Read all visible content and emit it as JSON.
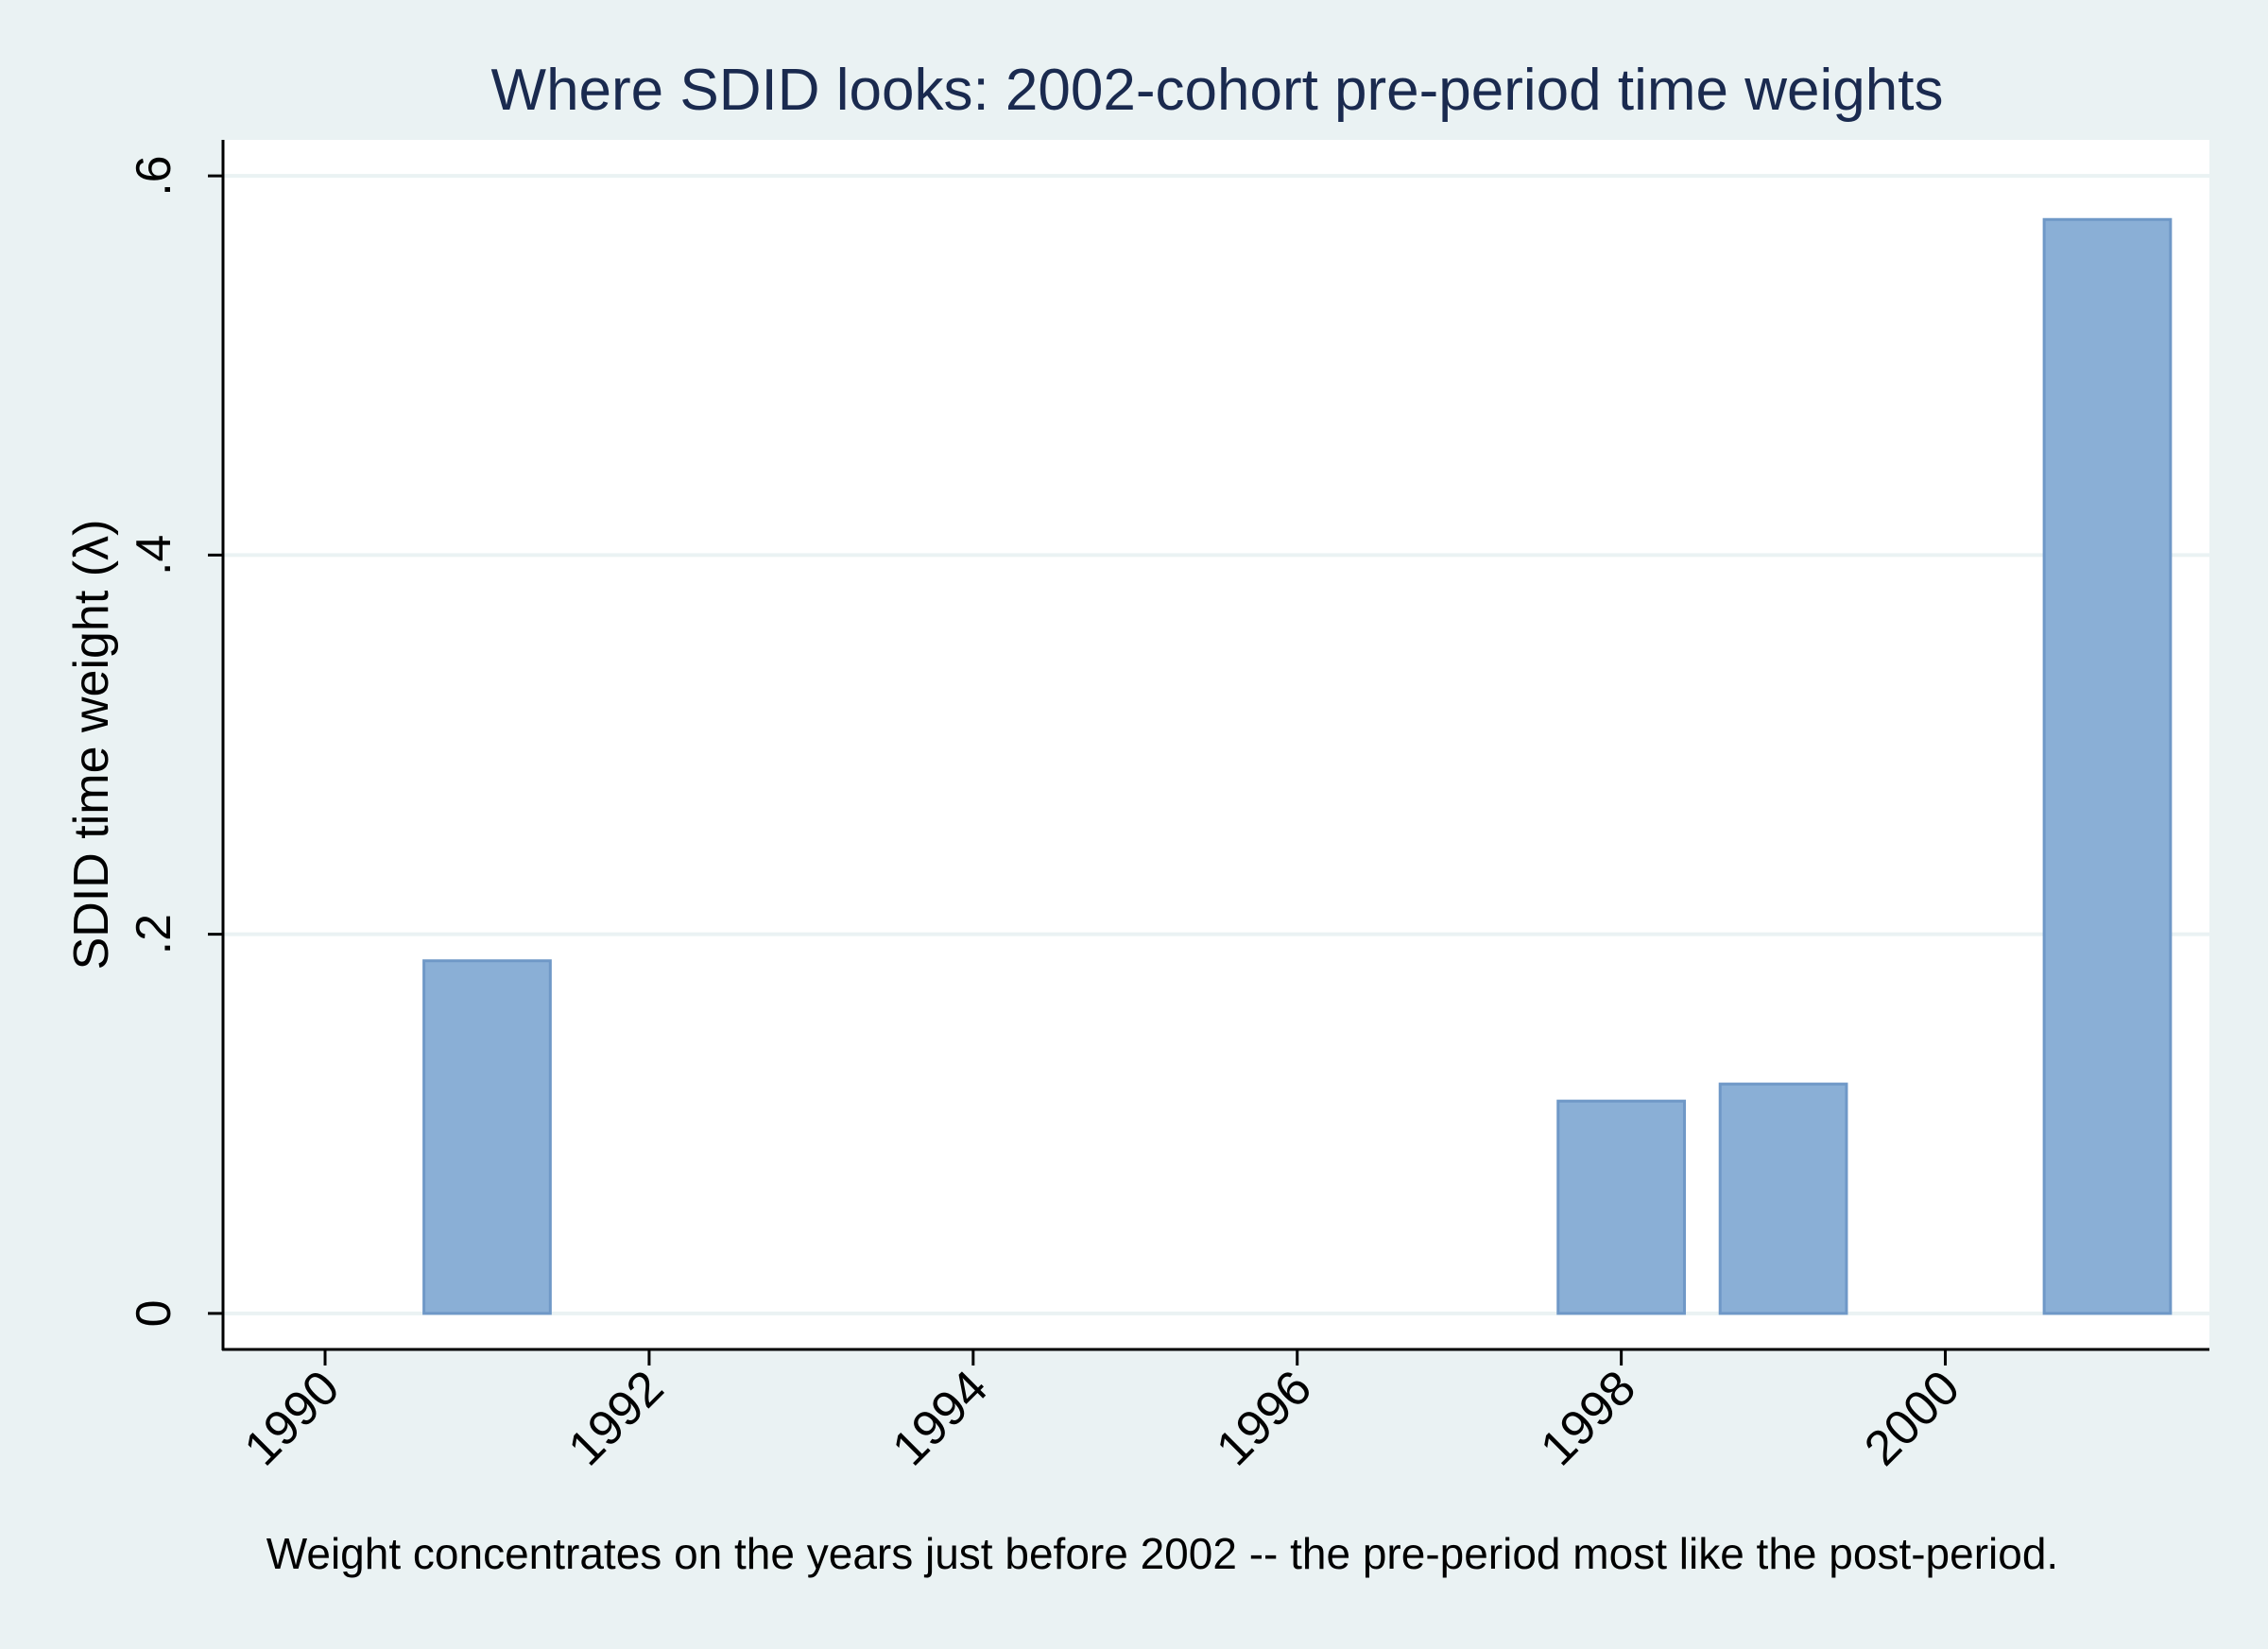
{
  "chart_data": {
    "type": "bar",
    "title": "Where SDID looks: 2002-cohort pre-period time weights",
    "ylabel": "SDID time weight (λ)",
    "xlabel": "",
    "caption": "Weight concentrates on the years just before 2002 -- the pre-period most like the post-period.",
    "x": [
      1990,
      1991,
      1992,
      1993,
      1994,
      1995,
      1996,
      1997,
      1998,
      1999,
      2000,
      2001
    ],
    "values": [
      0,
      0.186,
      0,
      0,
      0,
      0,
      0,
      0,
      0.112,
      0.121,
      0,
      0.577
    ],
    "xticks": [
      1990,
      1992,
      1994,
      1996,
      1998,
      2000
    ],
    "xtick_labels": [
      "1990",
      "1992",
      "1994",
      "1996",
      "1998",
      "2000"
    ],
    "yticks": [
      0,
      0.2,
      0.4,
      0.6
    ],
    "ytick_labels": [
      "0",
      ".2",
      ".4",
      ".6"
    ],
    "xlim": [
      1989.37,
      2001.63
    ],
    "ylim": [
      -0.019,
      0.619
    ],
    "grid": true,
    "bar_color": "#8aafd6",
    "bar_edge_color": "#6f98c7",
    "background": "#eaf2f3",
    "plot_background": "#ffffff",
    "title_color": "#1a2a4f"
  }
}
